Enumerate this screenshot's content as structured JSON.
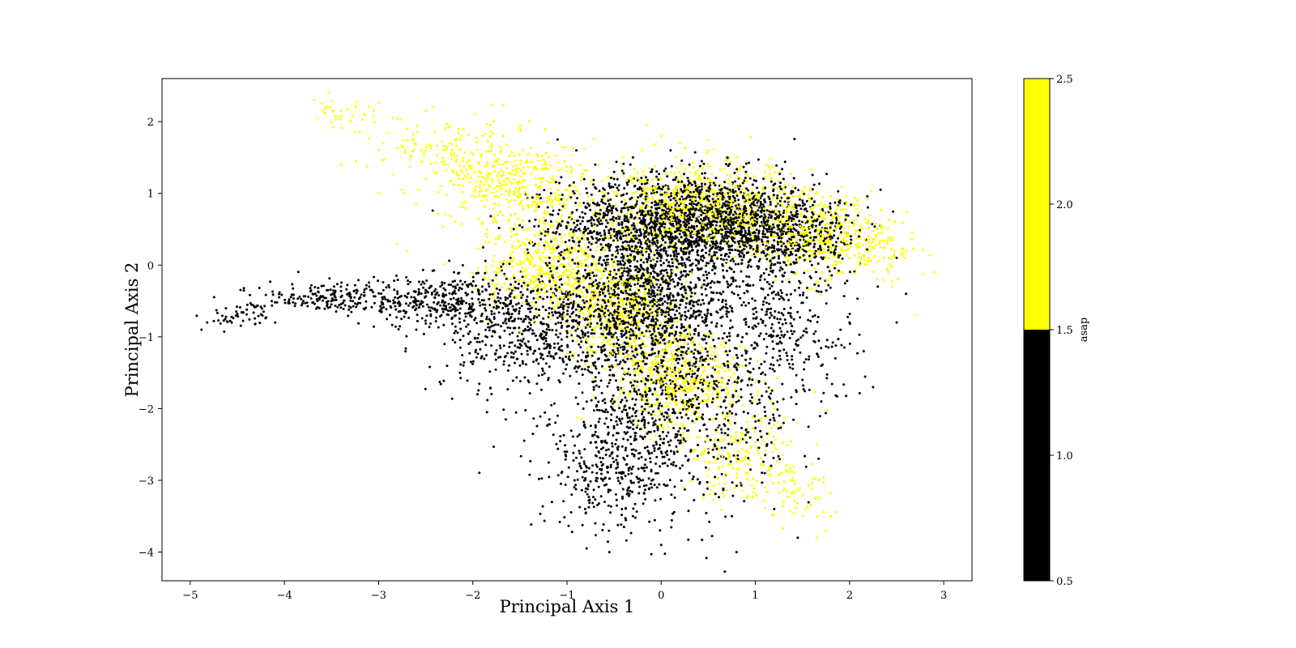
{
  "chart_data": {
    "type": "scatter",
    "title": "",
    "xlabel": "Principal Axis 1",
    "ylabel": "Principal Axis 2",
    "xlim": [
      -5.3,
      3.3
    ],
    "ylim": [
      -4.4,
      2.6
    ],
    "x_ticks": [
      -5,
      -4,
      -3,
      -2,
      -1,
      0,
      1,
      2,
      3
    ],
    "x_tick_labels": [
      "−5",
      "−4",
      "−3",
      "−2",
      "−1",
      "0",
      "1",
      "2",
      "3"
    ],
    "y_ticks": [
      -4,
      -3,
      -2,
      -1,
      0,
      1,
      2
    ],
    "y_tick_labels": [
      "−4",
      "−3",
      "−2",
      "−1",
      "0",
      "1",
      "2"
    ],
    "grid": false,
    "legend": "none",
    "marker": "point",
    "colorbar": {
      "label": "asap",
      "range": [
        0.5,
        2.5
      ],
      "ticks": [
        0.5,
        1.0,
        1.5,
        2.0,
        2.5
      ],
      "tick_labels": [
        "0.5",
        "1.0",
        "1.5",
        "2.0",
        "2.5"
      ],
      "levels": [
        {
          "from": 0.5,
          "to": 1.5,
          "value": 1,
          "color": "#000000"
        },
        {
          "from": 1.5,
          "to": 2.5,
          "value": 2,
          "color": "#ffff00"
        }
      ]
    },
    "series": [
      {
        "value": 1,
        "color": "#000000",
        "points": [
          [
            -4.88,
            -0.9
          ],
          [
            -4.82,
            -0.8
          ],
          [
            -4.75,
            -0.78
          ],
          [
            -4.62,
            -0.72
          ],
          [
            -4.5,
            -0.68
          ],
          [
            -4.4,
            -0.62
          ],
          [
            -4.25,
            -0.58
          ],
          [
            -4.1,
            -0.52
          ],
          [
            -3.95,
            -0.48
          ],
          [
            -3.8,
            -0.5
          ],
          [
            -3.7,
            -0.4
          ],
          [
            -3.55,
            -0.35
          ],
          [
            -3.4,
            -0.3
          ],
          [
            -3.25,
            -0.28
          ],
          [
            -3.1,
            -0.3
          ],
          [
            -2.95,
            -0.35
          ],
          [
            -2.8,
            -0.4
          ],
          [
            -2.6,
            -0.5
          ],
          [
            -2.45,
            -0.3
          ],
          [
            -2.3,
            -0.25
          ],
          [
            -2.15,
            -0.35
          ],
          [
            -2.0,
            -0.55
          ],
          [
            -2.6,
            -0.9
          ],
          [
            -2.3,
            -1.1
          ],
          [
            -2.1,
            -1.4
          ],
          [
            -1.95,
            -1.8
          ],
          [
            -1.85,
            -2.05
          ],
          [
            -1.65,
            -2.15
          ],
          [
            -1.5,
            -1.4
          ],
          [
            -1.8,
            -0.8
          ],
          [
            -1.6,
            -0.4
          ],
          [
            -1.4,
            -0.9
          ],
          [
            -1.2,
            -1.6
          ],
          [
            -1.1,
            -2.1
          ],
          [
            -1.0,
            -2.6
          ],
          [
            -0.95,
            -3.2
          ],
          [
            -0.8,
            -3.45
          ],
          [
            -0.7,
            -3.6
          ],
          [
            -0.55,
            -4.0
          ],
          [
            -0.6,
            -3.3
          ],
          [
            -0.4,
            -2.9
          ],
          [
            -0.3,
            -3.5
          ],
          [
            -0.1,
            -3.1
          ],
          [
            0.0,
            -3.9
          ],
          [
            -0.2,
            -2.4
          ],
          [
            -0.5,
            -1.9
          ],
          [
            -0.7,
            -1.2
          ],
          [
            -0.9,
            -0.7
          ],
          [
            -0.6,
            -0.3
          ],
          [
            -0.35,
            -0.8
          ],
          [
            -0.15,
            -1.3
          ],
          [
            0.05,
            -1.8
          ],
          [
            0.15,
            -2.4
          ],
          [
            0.3,
            -2.9
          ],
          [
            0.45,
            -3.2
          ],
          [
            0.6,
            -2.7
          ],
          [
            0.75,
            -3.5
          ],
          [
            0.8,
            -4.0
          ],
          [
            0.9,
            -2.3
          ],
          [
            1.1,
            -2.9
          ],
          [
            1.2,
            -3.4
          ],
          [
            1.45,
            -3.8
          ],
          [
            1.3,
            -2.2
          ],
          [
            1.5,
            -1.6
          ],
          [
            1.7,
            -1.9
          ],
          [
            1.85,
            -1.3
          ],
          [
            2.0,
            -0.8
          ],
          [
            2.15,
            -1.2
          ],
          [
            2.25,
            -1.7
          ],
          [
            2.5,
            -0.8
          ],
          [
            2.6,
            -0.4
          ],
          [
            2.5,
            0.1
          ],
          [
            2.3,
            -0.3
          ],
          [
            2.1,
            0.4
          ],
          [
            1.9,
            0.9
          ],
          [
            1.7,
            0.6
          ],
          [
            1.5,
            0.9
          ],
          [
            1.3,
            1.2
          ],
          [
            1.1,
            1.0
          ],
          [
            0.9,
            1.3
          ],
          [
            0.7,
            1.5
          ],
          [
            0.5,
            1.2
          ],
          [
            0.3,
            1.4
          ],
          [
            0.1,
            1.6
          ],
          [
            -0.1,
            1.3
          ],
          [
            -0.3,
            1.5
          ],
          [
            -0.5,
            1.2
          ],
          [
            -0.7,
            1.4
          ],
          [
            -0.9,
            1.6
          ],
          [
            -1.1,
            1.75
          ],
          [
            -0.8,
            0.8
          ],
          [
            -0.5,
            0.5
          ],
          [
            -0.2,
            0.7
          ],
          [
            0.1,
            0.4
          ],
          [
            0.4,
            0.6
          ],
          [
            0.7,
            0.3
          ],
          [
            1.0,
            0.6
          ],
          [
            1.3,
            0.3
          ],
          [
            1.6,
            0.0
          ],
          [
            0.2,
            -0.2
          ],
          [
            -0.1,
            -0.5
          ],
          [
            0.4,
            -0.7
          ],
          [
            0.7,
            -1.0
          ],
          [
            1.0,
            -0.6
          ],
          [
            1.3,
            -1.0
          ],
          [
            0.6,
            -1.8
          ],
          [
            0.3,
            -1.4
          ],
          [
            -1.3,
            -0.2
          ],
          [
            -1.6,
            0.1
          ],
          [
            -1.9,
            -0.3
          ],
          [
            -2.2,
            -0.1
          ],
          [
            -1.2,
            0.5
          ],
          [
            -1.5,
            -1.1
          ],
          [
            -1.0,
            -1.0
          ],
          [
            -0.8,
            -2.8
          ],
          [
            -0.3,
            -2.0
          ],
          [
            0.9,
            -1.4
          ],
          [
            1.1,
            -0.2
          ],
          [
            -0.4,
            0.1
          ],
          [
            0.0,
            0.1
          ]
        ],
        "clusters": [
          {
            "center": [
              0.3,
              0.6
            ],
            "spread": [
              0.9,
              0.45
            ],
            "n": 1900
          },
          {
            "center": [
              -0.2,
              -0.5
            ],
            "spread": [
              0.75,
              0.6
            ],
            "n": 1300
          },
          {
            "center": [
              0.1,
              -1.9
            ],
            "spread": [
              0.75,
              0.9
            ],
            "n": 900
          },
          {
            "center": [
              -0.5,
              -2.8
            ],
            "spread": [
              0.45,
              0.55
            ],
            "n": 300
          },
          {
            "center": [
              -1.5,
              -0.9
            ],
            "spread": [
              0.55,
              0.55
            ],
            "n": 450
          },
          {
            "center": [
              -2.4,
              -0.5
            ],
            "spread": [
              0.6,
              0.25
            ],
            "n": 350
          },
          {
            "center": [
              -3.6,
              -0.45
            ],
            "spread": [
              0.55,
              0.12
            ],
            "n": 160
          },
          {
            "center": [
              -4.5,
              -0.7
            ],
            "spread": [
              0.25,
              0.1
            ],
            "n": 45
          },
          {
            "center": [
              1.3,
              -0.9
            ],
            "spread": [
              0.5,
              0.7
            ],
            "n": 280
          },
          {
            "center": [
              1.4,
              0.4
            ],
            "spread": [
              0.45,
              0.35
            ],
            "n": 350
          }
        ]
      },
      {
        "value": 2,
        "color": "#ffff00",
        "points": [
          [
            -3.6,
            2.25
          ],
          [
            -3.5,
            2.28
          ],
          [
            -3.4,
            2.15
          ],
          [
            -3.3,
            2.0
          ],
          [
            -3.2,
            1.85
          ],
          [
            -3.05,
            2.15
          ],
          [
            -2.95,
            1.7
          ],
          [
            -2.85,
            2.05
          ],
          [
            -2.7,
            1.9
          ],
          [
            -2.55,
            1.6
          ],
          [
            -2.5,
            2.15
          ],
          [
            -2.4,
            1.85
          ],
          [
            -2.3,
            1.45
          ],
          [
            -2.25,
            1.7
          ],
          [
            -2.1,
            1.9
          ],
          [
            -2.0,
            1.55
          ],
          [
            -2.5,
            1.2
          ],
          [
            -2.6,
            0.85
          ],
          [
            -2.75,
            1.05
          ],
          [
            -3.0,
            1.0
          ],
          [
            -2.8,
            0.3
          ],
          [
            -2.7,
            0.2
          ],
          [
            -2.1,
            1.2
          ],
          [
            -1.9,
            1.8
          ],
          [
            -1.7,
            1.6
          ],
          [
            -1.5,
            1.9
          ],
          [
            -1.4,
            2.0
          ],
          [
            -1.2,
            1.7
          ],
          [
            -1.85,
            0.5
          ],
          [
            -1.6,
            0.9
          ],
          [
            -1.3,
            0.3
          ],
          [
            -1.0,
            0.1
          ],
          [
            -0.8,
            -0.5
          ],
          [
            -0.6,
            -1.0
          ],
          [
            -0.3,
            -1.4
          ],
          [
            0.0,
            -1.7
          ],
          [
            0.3,
            -2.0
          ],
          [
            0.5,
            -2.4
          ],
          [
            0.7,
            -2.7
          ],
          [
            0.9,
            -2.9
          ],
          [
            1.1,
            -3.1
          ],
          [
            1.3,
            -3.3
          ],
          [
            1.5,
            -3.5
          ],
          [
            1.65,
            -3.8
          ],
          [
            1.75,
            -3.7
          ],
          [
            1.8,
            -3.5
          ],
          [
            1.45,
            -2.2
          ],
          [
            1.65,
            -2.5
          ],
          [
            1.2,
            -2.0
          ],
          [
            0.8,
            -1.6
          ],
          [
            0.4,
            -1.1
          ],
          [
            2.0,
            0.6
          ],
          [
            2.2,
            0.4
          ],
          [
            2.4,
            0.3
          ],
          [
            2.6,
            0.2
          ],
          [
            2.9,
            -0.1
          ],
          [
            2.7,
            -0.7
          ],
          [
            2.45,
            -0.3
          ],
          [
            2.1,
            0.0
          ],
          [
            1.8,
            0.3
          ],
          [
            1.6,
            0.8
          ],
          [
            1.4,
            1.1
          ],
          [
            1.1,
            1.3
          ],
          [
            0.8,
            1.5
          ],
          [
            0.5,
            1.6
          ],
          [
            0.2,
            1.7
          ],
          [
            0.0,
            1.8
          ],
          [
            -0.2,
            1.6
          ],
          [
            -0.4,
            1.5
          ],
          [
            0.6,
            0.9
          ],
          [
            0.9,
            0.7
          ],
          [
            1.2,
            0.6
          ],
          [
            0.3,
            1.1
          ],
          [
            -0.7,
            0.3
          ],
          [
            -1.1,
            -0.3
          ]
        ],
        "clusters": [
          {
            "center": [
              -1.5,
              1.1
            ],
            "spread": [
              0.55,
              0.4
            ],
            "n": 380
          },
          {
            "center": [
              -2.3,
              1.6
            ],
            "spread": [
              0.55,
              0.3
            ],
            "n": 120
          },
          {
            "center": [
              -3.3,
              2.05
            ],
            "spread": [
              0.25,
              0.15
            ],
            "n": 30
          },
          {
            "center": [
              -1.2,
              0.0
            ],
            "spread": [
              0.45,
              0.4
            ],
            "n": 420
          },
          {
            "center": [
              -0.4,
              -0.6
            ],
            "spread": [
              0.45,
              0.5
            ],
            "n": 500
          },
          {
            "center": [
              0.2,
              -1.6
            ],
            "spread": [
              0.45,
              0.45
            ],
            "n": 450
          },
          {
            "center": [
              0.8,
              -2.6
            ],
            "spread": [
              0.4,
              0.45
            ],
            "n": 180
          },
          {
            "center": [
              1.4,
              -3.2
            ],
            "spread": [
              0.3,
              0.3
            ],
            "n": 60
          },
          {
            "center": [
              0.5,
              0.8
            ],
            "spread": [
              0.75,
              0.4
            ],
            "n": 750
          },
          {
            "center": [
              1.7,
              0.4
            ],
            "spread": [
              0.45,
              0.35
            ],
            "n": 380
          },
          {
            "center": [
              2.3,
              0.2
            ],
            "spread": [
              0.3,
              0.3
            ],
            "n": 80
          }
        ]
      }
    ]
  }
}
